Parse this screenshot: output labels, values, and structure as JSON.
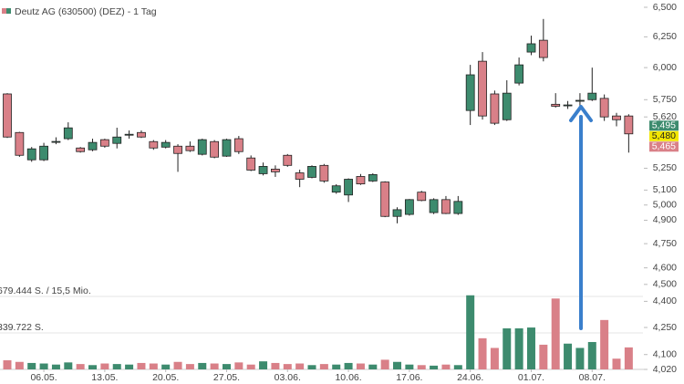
{
  "chart_data": {
    "type": "candlestick",
    "title": "Deutz AG (630500) (DEZ) - 1 Tag",
    "up_color": "#3d8b6e",
    "down_color": "#d98088",
    "log_scale": true,
    "categories": [
      null,
      null,
      null,
      "06.05.",
      null,
      null,
      null,
      null,
      "13.05.",
      null,
      null,
      null,
      null,
      "20.05.",
      null,
      null,
      null,
      null,
      "27.05.",
      null,
      null,
      null,
      null,
      "03.06.",
      null,
      null,
      null,
      null,
      "10.06.",
      null,
      null,
      null,
      null,
      "17.06.",
      null,
      null,
      null,
      null,
      "24.06.",
      null,
      null,
      null,
      null,
      "01.07.",
      null,
      null,
      null,
      null,
      "08.07.",
      null,
      null,
      null
    ],
    "open": [
      5794,
      5505,
      5309,
      5309,
      5439,
      5460,
      5393,
      5380,
      5453,
      5426,
      5490,
      5505,
      5439,
      5399,
      5406,
      5406,
      5348,
      5439,
      5335,
      5460,
      5322,
      5212,
      5244,
      5341,
      5218,
      5187,
      5270,
      5086,
      5067,
      5193,
      5162,
      5155,
      4925,
      4938,
      5086,
      4950,
      5036,
      4944,
      5668,
      6051,
      5794,
      5599,
      5878,
      6125,
      6222,
      5715,
      5708,
      5740,
      5750,
      5760,
      5627,
      5627
    ],
    "high": [
      5800,
      5510,
      5400,
      5430,
      5470,
      5580,
      5400,
      5460,
      5460,
      5540,
      5520,
      5520,
      5450,
      5450,
      5420,
      5440,
      5460,
      5450,
      5460,
      5480,
      5340,
      5290,
      5270,
      5350,
      5240,
      5270,
      5280,
      5140,
      5180,
      5210,
      5215,
      5160,
      4985,
      5040,
      5095,
      5045,
      5060,
      5060,
      6022,
      6125,
      5820,
      5900,
      6081,
      6260,
      6400,
      5800,
      5740,
      5800,
      6000,
      5790,
      5650,
      5640
    ],
    "low": [
      5465,
      5330,
      5295,
      5300,
      5420,
      5450,
      5360,
      5370,
      5395,
      5390,
      5460,
      5465,
      5380,
      5390,
      5225,
      5365,
      5340,
      5320,
      5330,
      5350,
      5230,
      5200,
      5190,
      5260,
      5120,
      5180,
      5150,
      5075,
      5020,
      5135,
      5155,
      4920,
      4880,
      4930,
      5025,
      4940,
      4940,
      4935,
      5560,
      5600,
      5560,
      5590,
      5860,
      6100,
      6050,
      5690,
      5680,
      5700,
      5740,
      5590,
      5550,
      5360
    ],
    "close": [
      5472,
      5341,
      5387,
      5406,
      5440,
      5539,
      5367,
      5433,
      5406,
      5472,
      5492,
      5472,
      5393,
      5433,
      5354,
      5374,
      5453,
      5328,
      5453,
      5367,
      5237,
      5263,
      5225,
      5270,
      5174,
      5263,
      5162,
      5129,
      5174,
      5142,
      5206,
      4925,
      4969,
      5036,
      5030,
      5036,
      4944,
      5024,
      5943,
      5627,
      5573,
      5800,
      6022,
      6193,
      6081,
      5700,
      5710,
      5745,
      5800,
      5620,
      5599,
      5495
    ],
    "volume": [
      85000,
      70000,
      60000,
      55000,
      45000,
      65000,
      50000,
      40000,
      55000,
      50000,
      45000,
      60000,
      55000,
      45000,
      70000,
      50000,
      60000,
      55000,
      50000,
      65000,
      45000,
      75000,
      60000,
      50000,
      55000,
      40000,
      50000,
      45000,
      60000,
      55000,
      45000,
      90000,
      70000,
      45000,
      40000,
      35000,
      45000,
      40000,
      690000,
      290000,
      200000,
      382000,
      382000,
      390000,
      230000,
      660000,
      240000,
      200000,
      255000,
      460000,
      100000,
      205000
    ],
    "ylim": [
      4020,
      6500
    ],
    "yticks": [
      {
        "value": 6500,
        "label": "6,500"
      },
      {
        "value": 6250,
        "label": "6,250"
      },
      {
        "value": 6000,
        "label": "6,000"
      },
      {
        "value": 5750,
        "label": "5,750"
      },
      {
        "value": 5620,
        "label": "5,620"
      },
      {
        "value": 5250,
        "label": "5,250"
      },
      {
        "value": 5100,
        "label": "5,100"
      },
      {
        "value": 5000,
        "label": "5,000"
      },
      {
        "value": 4900,
        "label": "4,900"
      },
      {
        "value": 4750,
        "label": "4,750"
      },
      {
        "value": 4600,
        "label": "4,600"
      },
      {
        "value": 4500,
        "label": "4,500"
      },
      {
        "value": 4400,
        "label": "4,400"
      },
      {
        "value": 4250,
        "label": "4,250"
      },
      {
        "value": 4100,
        "label": "4,100"
      },
      {
        "value": 4020,
        "label": "4,020"
      }
    ],
    "volume_lim": [
      0,
      679444
    ],
    "volume_ticks": [
      {
        "value": 679444,
        "label": "679.444 S. / 15,5 Mio."
      },
      {
        "value": 339722,
        "label": "339.722 S."
      }
    ],
    "price_badges": [
      {
        "value": 5495,
        "label": "5,495",
        "color": "#3d8b6e"
      },
      {
        "value": 5480,
        "label": "5,480",
        "color": "#f2e600"
      },
      {
        "value": 5465,
        "label": "5,465",
        "color": "#d98088"
      }
    ]
  }
}
